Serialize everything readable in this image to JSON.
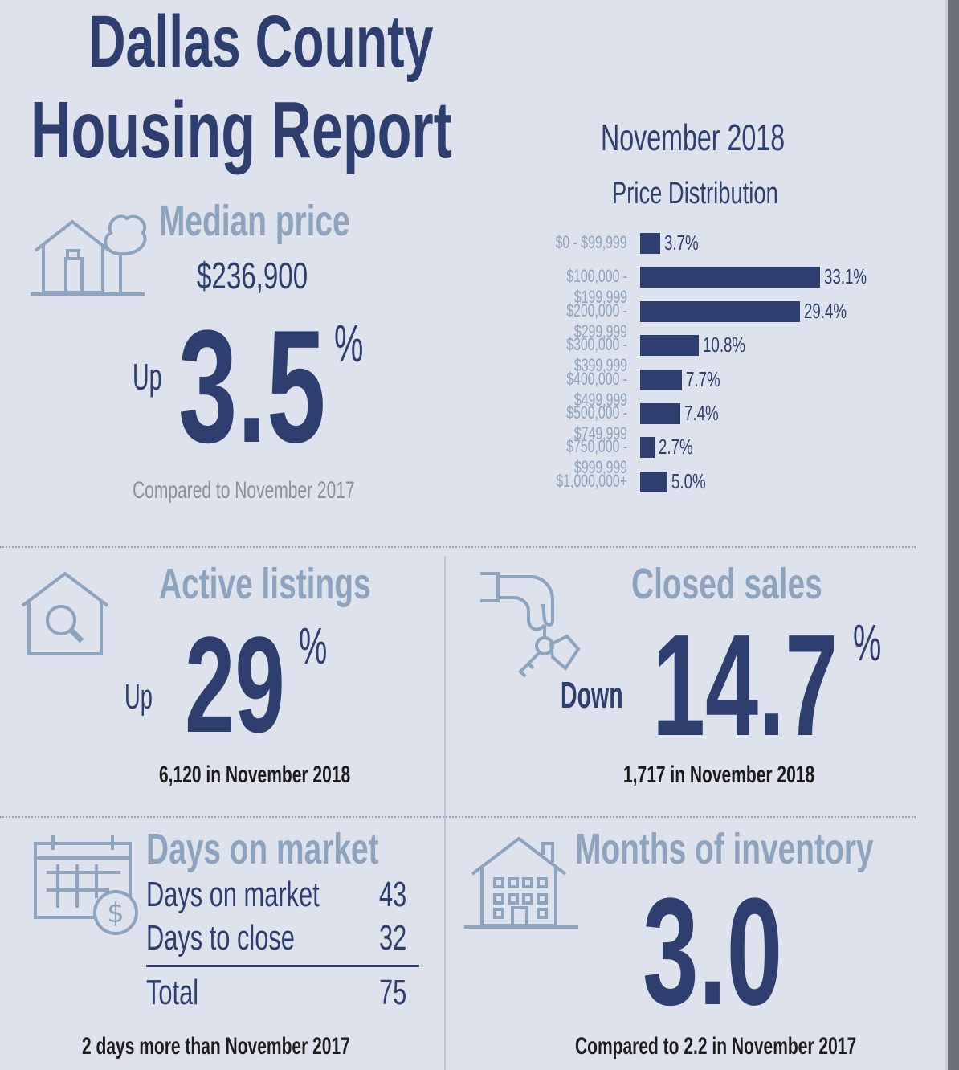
{
  "title_line1": "Dallas County",
  "title_line2": "Housing Report",
  "period": "November 2018",
  "median": {
    "heading": "Median price",
    "price": "$236,900",
    "direction": "Up",
    "change": "3.5",
    "unit": "%",
    "comparison": "Compared to November 2017"
  },
  "active": {
    "heading": "Active listings",
    "direction": "Up",
    "change": "29",
    "unit": "%",
    "detail": "6,120 in November 2018"
  },
  "closed": {
    "heading": "Closed sales",
    "direction": "Down",
    "change": "14.7",
    "unit": "%",
    "detail": "1,717 in November 2018"
  },
  "days": {
    "heading": "Days on market",
    "rows": [
      {
        "label": "Days on market",
        "value": "43"
      },
      {
        "label": "Days to close",
        "value": "32"
      }
    ],
    "total_label": "Total",
    "total_value": "75",
    "note": "2 days more than November 2017"
  },
  "inventory": {
    "heading": "Months of inventory",
    "value": "3.0",
    "comparison": "Compared to 2.2 in November 2017"
  },
  "icons": {
    "house_tree": "house-with-tree-icon",
    "house_search": "house-magnifier-icon",
    "hand_keys": "hand-with-keys-icon",
    "calendar": "calendar-dollar-icon",
    "apartment": "apartment-building-icon"
  },
  "colors": {
    "accent": "#2e3e6e",
    "light": "#8ea3bd",
    "background": "#dde2ec"
  },
  "chart_data": {
    "type": "bar",
    "orientation": "horizontal",
    "title": "Price Distribution",
    "categories": [
      "$0 - $99,999",
      "$100,000 - $199,999",
      "$200,000 - $299,999",
      "$300,000 - $399,999",
      "$400,000 - $499,999",
      "$500,000 - $749,999",
      "$750,000 - $999,999",
      "$1,000,000+"
    ],
    "values": [
      3.7,
      33.1,
      29.4,
      10.8,
      7.7,
      7.4,
      2.7,
      5.0
    ],
    "value_labels": [
      "3.7%",
      "33.1%",
      "29.4%",
      "10.8%",
      "7.7%",
      "7.4%",
      "2.7%",
      "5.0%"
    ],
    "xlim": [
      0,
      33.1
    ]
  }
}
